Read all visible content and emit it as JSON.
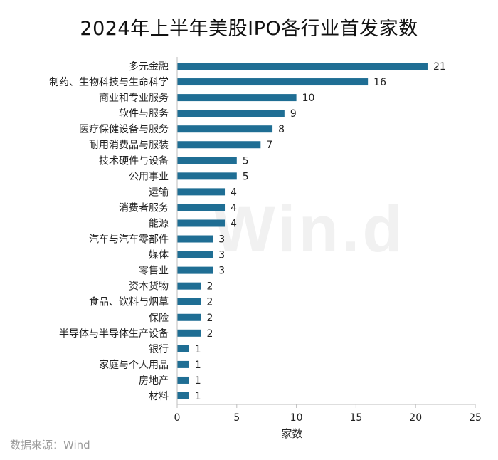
{
  "chart_data": {
    "type": "bar",
    "orientation": "horizontal",
    "title": "2024年上半年美股IPO各行业首发家数",
    "xlabel": "家数",
    "ylabel": "",
    "xlim": [
      0,
      25
    ],
    "xticks": [
      0,
      5,
      10,
      15,
      20,
      25
    ],
    "grid": false,
    "bar_color": "#1f6e94",
    "categories": [
      "多元金融",
      "制药、生物科技与生命科学",
      "商业和专业服务",
      "软件与服务",
      "医疗保健设备与服务",
      "耐用消费品与服装",
      "技术硬件与设备",
      "公用事业",
      "运输",
      "消费者服务",
      "能源",
      "汽车与汽车零部件",
      "媒体",
      "零售业",
      "资本货物",
      "食品、饮料与烟草",
      "保险",
      "半导体与半导体生产设备",
      "银行",
      "家庭与个人用品",
      "房地产",
      "材料"
    ],
    "values": [
      21,
      16,
      10,
      9,
      8,
      7,
      5,
      5,
      4,
      4,
      4,
      3,
      3,
      3,
      2,
      2,
      2,
      2,
      1,
      1,
      1,
      1
    ]
  },
  "source": "数据来源：Wind",
  "watermark": "Win.d"
}
